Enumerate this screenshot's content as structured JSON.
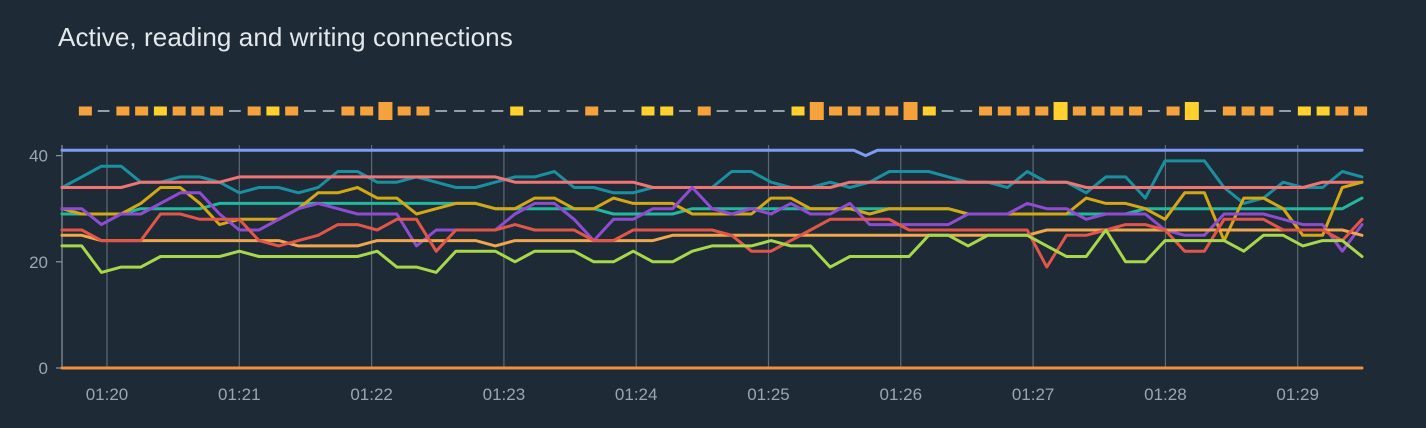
{
  "panel": {
    "title": "Active, reading and writing connections"
  },
  "chart_data": {
    "type": "line",
    "title": "Active, reading and writing connections",
    "xlabel": "",
    "ylabel": "",
    "x_ticks": [
      "01:20",
      "01:21",
      "01:22",
      "01:23",
      "01:24",
      "01:25",
      "01:26",
      "01:27",
      "01:28",
      "01:29"
    ],
    "y_ticks": [
      0,
      20,
      40
    ],
    "ylim": [
      0,
      42
    ],
    "grid": "vertical",
    "legend": "none",
    "series": [
      {
        "color": "#7e9cf5",
        "values": [
          41,
          41,
          41,
          41,
          41,
          41,
          41,
          41,
          41,
          41,
          41,
          41,
          41,
          41,
          41,
          41,
          41,
          41,
          41,
          41,
          41,
          41,
          41,
          41,
          41,
          41,
          41,
          41,
          41,
          41,
          41,
          41,
          41,
          41,
          41,
          41,
          41,
          41,
          41,
          41,
          41,
          41,
          41,
          41,
          41,
          41,
          41,
          41,
          41,
          41,
          41,
          41,
          41,
          41,
          41,
          41,
          41,
          41,
          41,
          41,
          41,
          41,
          41,
          41,
          41,
          41,
          41,
          41,
          40,
          41,
          41,
          41,
          41,
          41,
          41,
          41,
          41,
          41,
          41,
          41,
          41,
          41,
          41,
          41,
          41,
          41,
          41,
          41,
          41,
          41,
          41,
          41,
          41,
          41,
          41,
          41,
          41,
          41,
          41,
          41,
          41,
          41,
          41,
          41,
          41,
          41,
          41,
          41,
          41,
          41,
          41
        ]
      },
      {
        "color": "#1a8fa0",
        "values": [
          34,
          36,
          38,
          38,
          35,
          35,
          36,
          36,
          35,
          33,
          34,
          34,
          33,
          34,
          37,
          37,
          35,
          35,
          36,
          35,
          34,
          34,
          35,
          36,
          36,
          37,
          34,
          34,
          33,
          33,
          34,
          34,
          34,
          34,
          37,
          37,
          35,
          34,
          34,
          35,
          34,
          35,
          37,
          37,
          37,
          36,
          35,
          35,
          34,
          37,
          35,
          35,
          33,
          36,
          36,
          32,
          39,
          39,
          39,
          34,
          31,
          32,
          35,
          34,
          34,
          37,
          36
        ]
      },
      {
        "color": "#f07474",
        "values": [
          34,
          34,
          34,
          34,
          35,
          35,
          35,
          35,
          35,
          36,
          36,
          36,
          36,
          36,
          36,
          36,
          36,
          36,
          36,
          36,
          36,
          36,
          36,
          35,
          35,
          35,
          35,
          35,
          35,
          35,
          34,
          34,
          34,
          34,
          34,
          34,
          34,
          34,
          34,
          34,
          35,
          35,
          35,
          35,
          35,
          35,
          35,
          35,
          35,
          35,
          35,
          35,
          34,
          34,
          34,
          34,
          34,
          34,
          34,
          34,
          34,
          34,
          34,
          34,
          35,
          35,
          35
        ]
      },
      {
        "color": "#22b8a0",
        "values": [
          29,
          29,
          29,
          29,
          30,
          30,
          30,
          30,
          31,
          31,
          31,
          31,
          31,
          31,
          31,
          31,
          31,
          31,
          31,
          31,
          31,
          31,
          30,
          30,
          30,
          30,
          30,
          30,
          29,
          29,
          29,
          29,
          30,
          30,
          30,
          30,
          30,
          30,
          30,
          30,
          30,
          30,
          30,
          30,
          30,
          30,
          29,
          29,
          29,
          29,
          29,
          29,
          29,
          29,
          29,
          30,
          30,
          30,
          30,
          30,
          30,
          30,
          30,
          30,
          30,
          30,
          32
        ]
      },
      {
        "color": "#d4a814",
        "values": [
          30,
          29,
          29,
          29,
          31,
          34,
          34,
          31,
          27,
          28,
          28,
          28,
          30,
          33,
          33,
          34,
          32,
          32,
          29,
          30,
          31,
          31,
          30,
          30,
          32,
          32,
          30,
          30,
          32,
          31,
          31,
          31,
          29,
          29,
          29,
          29,
          32,
          32,
          30,
          30,
          30,
          29,
          30,
          30,
          30,
          30,
          29,
          29,
          29,
          29,
          29,
          29,
          32,
          31,
          31,
          30,
          28,
          33,
          33,
          24,
          32,
          32,
          30,
          25,
          25,
          34,
          35
        ]
      },
      {
        "color": "#8e4cd0",
        "values": [
          30,
          30,
          27,
          29,
          29,
          31,
          33,
          33,
          29,
          26,
          26,
          28,
          30,
          31,
          30,
          29,
          29,
          29,
          23,
          26,
          26,
          26,
          26,
          29,
          31,
          31,
          28,
          24,
          28,
          28,
          30,
          30,
          34,
          30,
          29,
          30,
          29,
          31,
          29,
          29,
          31,
          27,
          27,
          27,
          27,
          27,
          29,
          29,
          29,
          31,
          30,
          30,
          28,
          29,
          29,
          29,
          26,
          25,
          25,
          29,
          29,
          29,
          28,
          27,
          27,
          22,
          27
        ]
      },
      {
        "color": "#f0a64a",
        "values": [
          25,
          25,
          24,
          24,
          24,
          24,
          24,
          24,
          24,
          24,
          24,
          24,
          23,
          23,
          23,
          23,
          24,
          24,
          24,
          24,
          24,
          24,
          23,
          24,
          24,
          24,
          24,
          24,
          24,
          24,
          24,
          25,
          25,
          25,
          25,
          25,
          25,
          25,
          25,
          25,
          25,
          25,
          25,
          25,
          25,
          25,
          25,
          25,
          25,
          25,
          26,
          26,
          26,
          26,
          26,
          26,
          26,
          26,
          26,
          26,
          26,
          26,
          26,
          26,
          26,
          26,
          25
        ]
      },
      {
        "color": "#e2564a",
        "values": [
          26,
          26,
          24,
          24,
          24,
          29,
          29,
          28,
          28,
          28,
          24,
          23,
          24,
          25,
          27,
          27,
          26,
          28,
          28,
          22,
          26,
          26,
          26,
          27,
          26,
          26,
          26,
          24,
          24,
          26,
          26,
          26,
          26,
          26,
          25,
          22,
          22,
          24,
          26,
          28,
          28,
          28,
          28,
          26,
          26,
          26,
          26,
          26,
          26,
          26,
          19,
          25,
          25,
          26,
          27,
          27,
          26,
          22,
          22,
          28,
          28,
          28,
          26,
          26,
          26,
          24,
          28
        ]
      },
      {
        "color": "#a8d84a",
        "values": [
          23,
          23,
          18,
          19,
          19,
          21,
          21,
          21,
          21,
          22,
          21,
          21,
          21,
          21,
          21,
          21,
          22,
          19,
          19,
          18,
          22,
          22,
          22,
          20,
          22,
          22,
          22,
          20,
          20,
          22,
          20,
          20,
          22,
          23,
          23,
          23,
          24,
          23,
          23,
          19,
          21,
          21,
          21,
          21,
          25,
          25,
          23,
          25,
          25,
          25,
          23,
          21,
          21,
          26,
          20,
          20,
          24,
          24,
          24,
          24,
          22,
          25,
          25,
          23,
          24,
          24,
          21
        ]
      },
      {
        "color": "#f0903a",
        "values": [
          0,
          0,
          0,
          0,
          0,
          0,
          0,
          0,
          0,
          0,
          0,
          0,
          0,
          0,
          0,
          0,
          0,
          0,
          0,
          0,
          0,
          0,
          0,
          0,
          0,
          0,
          0,
          0,
          0,
          0,
          0,
          0,
          0,
          0,
          0,
          0,
          0,
          0,
          0,
          0,
          0,
          0,
          0,
          0,
          0,
          0,
          0,
          0,
          0,
          0,
          0,
          0,
          0,
          0,
          0,
          0,
          0,
          0,
          0,
          0,
          0,
          0,
          0,
          0,
          0,
          0,
          0
        ]
      }
    ],
    "annotations": {
      "colors": [
        "#f5a23c",
        "#ffd12e"
      ],
      "track": [
        2,
        0,
        2,
        2,
        1,
        2,
        2,
        2,
        0,
        2,
        1,
        2,
        0,
        0,
        2,
        2,
        3,
        2,
        2,
        0,
        0,
        0,
        0,
        1,
        0,
        0,
        0,
        2,
        0,
        0,
        1,
        1,
        0,
        2,
        0,
        0,
        0,
        0,
        1,
        3,
        2,
        2,
        2,
        2,
        3,
        1,
        0,
        0,
        2,
        2,
        2,
        2,
        4,
        2,
        2,
        2,
        2,
        0,
        2,
        4,
        0,
        2,
        2,
        2,
        0,
        1,
        1,
        2,
        2
      ]
    }
  }
}
